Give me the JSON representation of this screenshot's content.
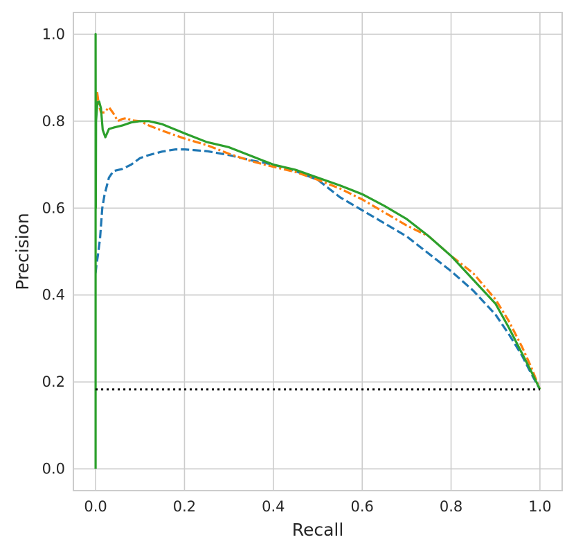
{
  "chart_data": {
    "type": "line",
    "title": "",
    "xlabel": "Recall",
    "ylabel": "Precision",
    "xlim": [
      -0.05,
      1.05
    ],
    "ylim": [
      -0.05,
      1.05
    ],
    "xticks": [
      "0.0",
      "0.2",
      "0.4",
      "0.6",
      "0.8",
      "1.0"
    ],
    "yticks": [
      "0.0",
      "0.2",
      "0.4",
      "0.6",
      "0.8",
      "1.0"
    ],
    "grid": true,
    "legend": "none",
    "series": [
      {
        "color": "#1f77b4",
        "linestyle": "dashed",
        "points": [
          [
            0.0,
            0.45
          ],
          [
            0.002,
            0.47
          ],
          [
            0.005,
            0.49
          ],
          [
            0.01,
            0.53
          ],
          [
            0.015,
            0.6
          ],
          [
            0.02,
            0.63
          ],
          [
            0.03,
            0.67
          ],
          [
            0.04,
            0.685
          ],
          [
            0.06,
            0.69
          ],
          [
            0.08,
            0.7
          ],
          [
            0.1,
            0.715
          ],
          [
            0.12,
            0.722
          ],
          [
            0.15,
            0.73
          ],
          [
            0.18,
            0.735
          ],
          [
            0.2,
            0.735
          ],
          [
            0.25,
            0.731
          ],
          [
            0.3,
            0.722
          ],
          [
            0.35,
            0.71
          ],
          [
            0.4,
            0.7
          ],
          [
            0.45,
            0.685
          ],
          [
            0.5,
            0.665
          ],
          [
            0.55,
            0.625
          ],
          [
            0.6,
            0.595
          ],
          [
            0.65,
            0.565
          ],
          [
            0.7,
            0.535
          ],
          [
            0.75,
            0.495
          ],
          [
            0.8,
            0.455
          ],
          [
            0.85,
            0.41
          ],
          [
            0.9,
            0.355
          ],
          [
            0.93,
            0.31
          ],
          [
            0.96,
            0.26
          ],
          [
            0.98,
            0.22
          ],
          [
            1.0,
            0.183
          ]
        ]
      },
      {
        "color": "#ff7f0e",
        "linestyle": "dashdot",
        "points": [
          [
            0.0,
            0.8
          ],
          [
            0.003,
            0.87
          ],
          [
            0.007,
            0.84
          ],
          [
            0.012,
            0.82
          ],
          [
            0.02,
            0.82
          ],
          [
            0.03,
            0.832
          ],
          [
            0.04,
            0.818
          ],
          [
            0.05,
            0.8
          ],
          [
            0.06,
            0.805
          ],
          [
            0.07,
            0.807
          ],
          [
            0.08,
            0.802
          ],
          [
            0.1,
            0.8
          ],
          [
            0.12,
            0.79
          ],
          [
            0.15,
            0.778
          ],
          [
            0.2,
            0.76
          ],
          [
            0.25,
            0.745
          ],
          [
            0.3,
            0.725
          ],
          [
            0.35,
            0.708
          ],
          [
            0.4,
            0.695
          ],
          [
            0.45,
            0.683
          ],
          [
            0.5,
            0.665
          ],
          [
            0.55,
            0.645
          ],
          [
            0.6,
            0.62
          ],
          [
            0.65,
            0.59
          ],
          [
            0.7,
            0.56
          ],
          [
            0.75,
            0.535
          ],
          [
            0.8,
            0.49
          ],
          [
            0.85,
            0.45
          ],
          [
            0.9,
            0.39
          ],
          [
            0.93,
            0.34
          ],
          [
            0.96,
            0.28
          ],
          [
            0.98,
            0.235
          ],
          [
            1.0,
            0.183
          ]
        ]
      },
      {
        "color": "#2ca02c",
        "linestyle": "solid",
        "points": [
          [
            0.0,
            0.0
          ],
          [
            0.0,
            1.0
          ],
          [
            0.0005,
            0.6
          ],
          [
            0.001,
            0.8
          ],
          [
            0.004,
            0.843
          ],
          [
            0.008,
            0.845
          ],
          [
            0.012,
            0.83
          ],
          [
            0.016,
            0.78
          ],
          [
            0.022,
            0.763
          ],
          [
            0.03,
            0.782
          ],
          [
            0.04,
            0.785
          ],
          [
            0.06,
            0.79
          ],
          [
            0.08,
            0.797
          ],
          [
            0.1,
            0.8
          ],
          [
            0.12,
            0.8
          ],
          [
            0.15,
            0.793
          ],
          [
            0.2,
            0.772
          ],
          [
            0.25,
            0.752
          ],
          [
            0.3,
            0.74
          ],
          [
            0.35,
            0.72
          ],
          [
            0.4,
            0.7
          ],
          [
            0.45,
            0.688
          ],
          [
            0.5,
            0.67
          ],
          [
            0.55,
            0.652
          ],
          [
            0.6,
            0.632
          ],
          [
            0.65,
            0.605
          ],
          [
            0.7,
            0.575
          ],
          [
            0.75,
            0.535
          ],
          [
            0.8,
            0.49
          ],
          [
            0.85,
            0.435
          ],
          [
            0.9,
            0.38
          ],
          [
            0.93,
            0.325
          ],
          [
            0.96,
            0.265
          ],
          [
            0.98,
            0.225
          ],
          [
            1.0,
            0.183
          ]
        ]
      },
      {
        "color": "#000000",
        "linestyle": "dotted",
        "points": [
          [
            0.0,
            0.183
          ],
          [
            1.0,
            0.183
          ]
        ]
      }
    ]
  }
}
